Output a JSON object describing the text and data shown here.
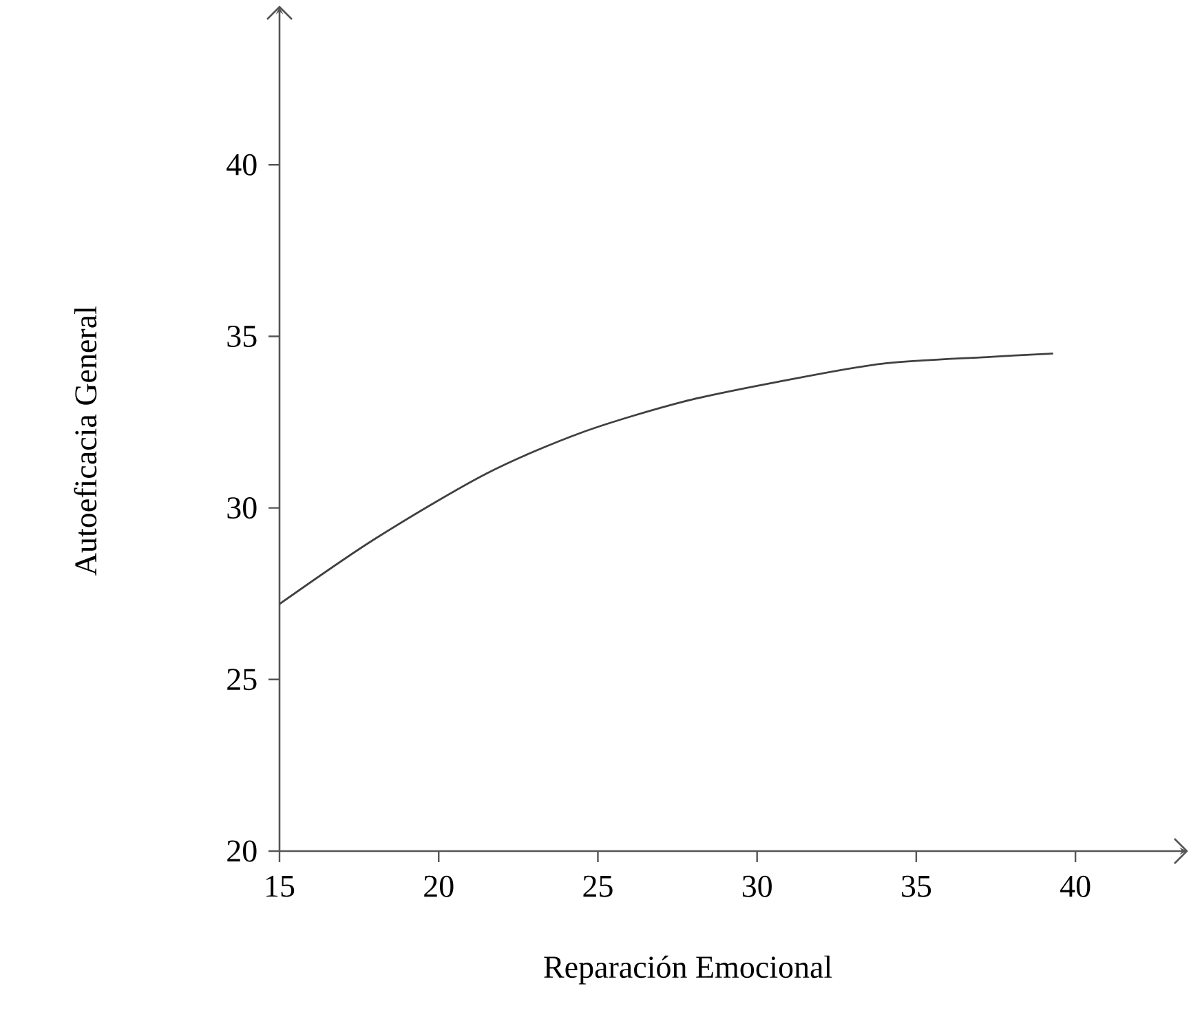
{
  "chart_data": {
    "type": "line",
    "xlabel": "Reparación Emocional",
    "ylabel": "Autoeficacia General",
    "x": [
      15.0,
      18.0,
      21.5,
      24.5,
      27.7,
      30.8,
      33.9,
      37.3,
      39.3
    ],
    "values": [
      27.2,
      29.1,
      31.0,
      32.2,
      33.1,
      33.7,
      34.2,
      34.4,
      34.5
    ],
    "color": "#404040",
    "xlim": [
      15,
      43.5
    ],
    "ylim": [
      20,
      44.6
    ],
    "xticks": [
      15,
      20,
      25,
      30,
      35,
      40
    ],
    "yticks": [
      20,
      25,
      30,
      35,
      40
    ],
    "marker": "none",
    "line_style": "solid"
  }
}
